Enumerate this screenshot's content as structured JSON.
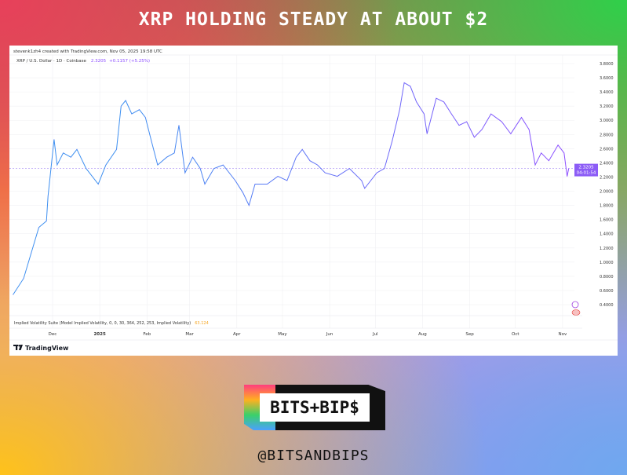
{
  "header": {
    "title": "XRP HOLDING STEADY AT ABOUT $2"
  },
  "footer": {
    "logo_text": "BITS+BIP$",
    "handle": "@BITSANDBIPS"
  },
  "chart_data": {
    "type": "line",
    "attribution": "stevenk1zh4 created with TradingView.com, Nov 05, 2025 19:58 UTC",
    "symbol_line": "XRP / U.S. Dollar · 1D · Coinbase",
    "last_price": "2.3205",
    "change": "+0.1157 (+5.25%)",
    "price_label": "2.3205",
    "countdown": "04:01:54",
    "indicator_label": "Implied Volatility Suite (Model Implied Volatility, 0, 0, 30, 364, 252, 253, Implied Volatility)",
    "indicator_value": "63.124",
    "brand": "TradingView",
    "ylim": [
      0.3,
      3.9
    ],
    "yticks": [
      "3.8000",
      "3.6000",
      "3.4000",
      "3.2000",
      "3.0000",
      "2.8000",
      "2.6000",
      "2.4000",
      "2.2000",
      "2.0000",
      "1.8000",
      "1.6000",
      "1.4000",
      "1.2000",
      "1.0000",
      "0.8000",
      "0.6000",
      "0.4000"
    ],
    "xticks": [
      {
        "label": "Dec",
        "date": "2024-12-01"
      },
      {
        "label": "2025",
        "date": "2025-01-01"
      },
      {
        "label": "Feb",
        "date": "2025-02-01"
      },
      {
        "label": "Mar",
        "date": "2025-03-01"
      },
      {
        "label": "Apr",
        "date": "2025-04-01"
      },
      {
        "label": "May",
        "date": "2025-05-01"
      },
      {
        "label": "Jun",
        "date": "2025-06-01"
      },
      {
        "label": "Jul",
        "date": "2025-07-01"
      },
      {
        "label": "Aug",
        "date": "2025-08-01"
      },
      {
        "label": "Sep",
        "date": "2025-09-01"
      },
      {
        "label": "Oct",
        "date": "2025-10-01"
      },
      {
        "label": "Nov",
        "date": "2025-11-01"
      }
    ],
    "colors": {
      "line_start": "#3d8ff0",
      "line_end": "#8c4dff",
      "price_label_bg": "#8c5cf6",
      "indicator_value": "#f5a623",
      "grid": "#f0f0f3"
    },
    "series": [
      {
        "x": [
          "2024-11-05",
          "2024-11-12",
          "2024-11-17",
          "2024-11-22",
          "2024-11-27",
          "2024-11-28",
          "2024-12-02",
          "2024-12-04",
          "2024-12-08",
          "2024-12-13",
          "2024-12-17",
          "2024-12-23",
          "2024-12-31",
          "2025-01-05",
          "2025-01-12",
          "2025-01-15",
          "2025-01-18",
          "2025-01-22",
          "2025-01-27",
          "2025-01-31",
          "2025-02-04",
          "2025-02-08",
          "2025-02-14",
          "2025-02-19",
          "2025-02-22",
          "2025-02-26",
          "2025-03-03",
          "2025-03-08",
          "2025-03-11",
          "2025-03-17",
          "2025-03-23",
          "2025-03-31",
          "2025-04-05",
          "2025-04-09",
          "2025-04-13",
          "2025-04-21",
          "2025-04-28",
          "2025-05-04",
          "2025-05-10",
          "2025-05-14",
          "2025-05-19",
          "2025-05-24",
          "2025-05-29",
          "2025-06-06",
          "2025-06-14",
          "2025-06-22",
          "2025-06-24",
          "2025-07-02",
          "2025-07-07",
          "2025-07-12",
          "2025-07-17",
          "2025-07-20",
          "2025-07-24",
          "2025-07-28",
          "2025-08-02",
          "2025-08-04",
          "2025-08-10",
          "2025-08-15",
          "2025-08-20",
          "2025-08-25",
          "2025-08-30",
          "2025-09-04",
          "2025-09-09",
          "2025-09-15",
          "2025-09-22",
          "2025-09-28",
          "2025-10-05",
          "2025-10-10",
          "2025-10-14",
          "2025-10-18",
          "2025-10-23",
          "2025-10-29",
          "2025-11-02",
          "2025-11-04",
          "2025-11-05"
        ],
        "y": [
          0.54,
          0.77,
          1.13,
          1.49,
          1.58,
          1.93,
          2.73,
          2.37,
          2.54,
          2.48,
          2.59,
          2.32,
          2.1,
          2.37,
          2.59,
          3.2,
          3.28,
          3.09,
          3.15,
          3.04,
          2.7,
          2.37,
          2.48,
          2.54,
          2.93,
          2.26,
          2.48,
          2.32,
          2.1,
          2.32,
          2.37,
          2.15,
          1.98,
          1.8,
          2.1,
          2.1,
          2.21,
          2.15,
          2.48,
          2.59,
          2.43,
          2.37,
          2.26,
          2.21,
          2.32,
          2.15,
          2.04,
          2.26,
          2.32,
          2.7,
          3.15,
          3.53,
          3.48,
          3.26,
          3.09,
          2.81,
          3.31,
          3.26,
          3.09,
          2.93,
          2.98,
          2.76,
          2.87,
          3.09,
          2.98,
          2.81,
          3.04,
          2.87,
          2.37,
          2.54,
          2.43,
          2.65,
          2.54,
          2.21,
          2.32
        ]
      }
    ]
  }
}
